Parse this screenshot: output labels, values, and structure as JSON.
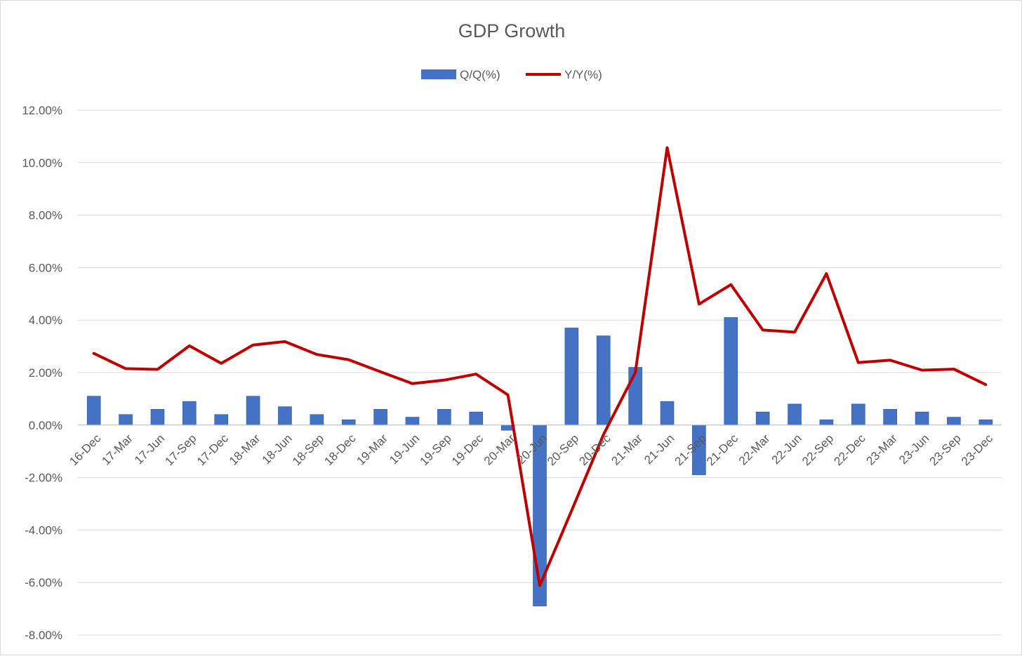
{
  "chart_data": {
    "type": "bar",
    "title": "GDP Growth",
    "xlabel": "",
    "ylabel": "",
    "ylim": [
      -8,
      12
    ],
    "y_ticks": [
      {
        "value": 12,
        "label": "12.00%"
      },
      {
        "value": 10,
        "label": "10.00%"
      },
      {
        "value": 8,
        "label": "8.00%"
      },
      {
        "value": 6,
        "label": "6.00%"
      },
      {
        "value": 4,
        "label": "4.00%"
      },
      {
        "value": 2,
        "label": "2.00%"
      },
      {
        "value": 0,
        "label": "0.00%"
      },
      {
        "value": -2,
        "label": "-2.00%"
      },
      {
        "value": -4,
        "label": "-4.00%"
      },
      {
        "value": -6,
        "label": "-6.00%"
      },
      {
        "value": -8,
        "label": "-8.00%"
      }
    ],
    "grid": true,
    "legend_position": "top-center",
    "categories": [
      "16-Dec",
      "17-Mar",
      "17-Jun",
      "17-Sep",
      "17-Dec",
      "18-Mar",
      "18-Jun",
      "18-Sep",
      "18-Dec",
      "19-Mar",
      "19-Jun",
      "19-Sep",
      "19-Dec",
      "20-Mar",
      "20-Jun",
      "20-Sep",
      "20-Dec",
      "21-Mar",
      "21-Jun",
      "21-Sep",
      "21-Dec",
      "22-Mar",
      "22-Jun",
      "22-Sep",
      "22-Dec",
      "23-Mar",
      "23-Jun",
      "23-Sep",
      "23-Dec"
    ],
    "series": [
      {
        "name": "Q/Q(%)",
        "type": "bar",
        "color": "#4472c4",
        "values": [
          1.1,
          0.4,
          0.6,
          0.9,
          0.4,
          1.1,
          0.7,
          0.4,
          0.2,
          0.6,
          0.3,
          0.6,
          0.5,
          -0.2,
          -6.9,
          3.7,
          3.4,
          2.2,
          0.9,
          -1.9,
          4.1,
          0.5,
          0.8,
          0.2,
          0.8,
          0.6,
          0.5,
          0.3,
          0.2
        ]
      },
      {
        "name": "Y/Y(%)",
        "type": "line",
        "color": "#c00000",
        "values": [
          2.73,
          2.15,
          2.12,
          3.02,
          2.35,
          3.05,
          3.18,
          2.69,
          2.49,
          2.03,
          1.58,
          1.71,
          1.94,
          1.15,
          -6.12,
          -3.26,
          -0.36,
          2.0,
          10.57,
          4.61,
          5.35,
          3.62,
          3.54,
          5.77,
          2.38,
          2.47,
          2.09,
          2.13,
          1.54
        ]
      }
    ]
  }
}
